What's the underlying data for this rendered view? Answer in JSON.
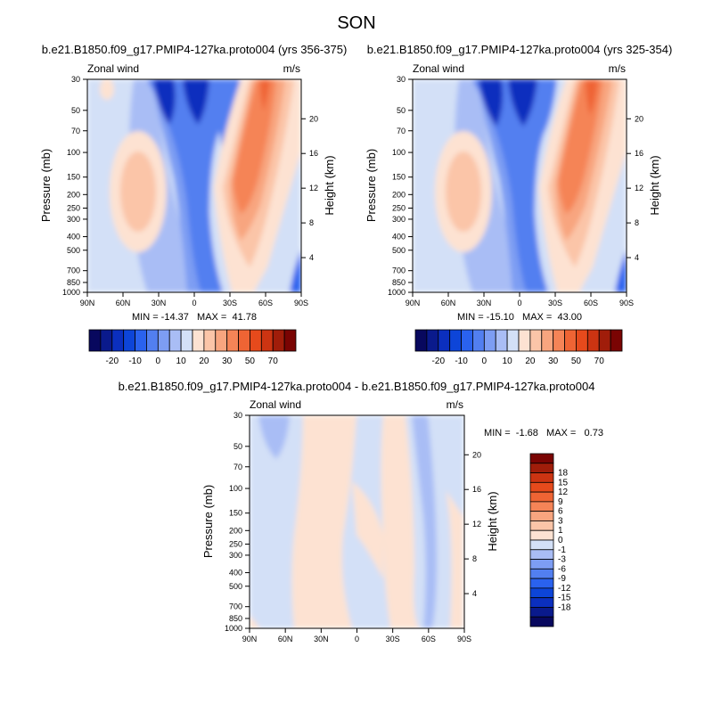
{
  "title": "SON",
  "colors": {
    "blue_scale": [
      "#08085e",
      "#0a1a8c",
      "#0b2fbe",
      "#0d45d8",
      "#2a62ee",
      "#527ff0",
      "#7d9df3",
      "#a9bdf5",
      "#d3e0f7"
    ],
    "red_scale": [
      "#fde2d2",
      "#fbc5a8",
      "#f8a57f",
      "#f58457",
      "#ef6434",
      "#e64a1c",
      "#cc3412",
      "#a01d0a",
      "#7a0403"
    ]
  },
  "panels": [
    {
      "subtitle": "b.e21.B1850.f09_g17.PMIP4-127ka.proto004 (yrs 356-375)",
      "var_label": "Zonal wind",
      "units": "m/s",
      "ylabel": "Pressure (mb)",
      "ylabel_right": "Height (km)",
      "stats": "MIN = -14.37   MAX =  41.78"
    },
    {
      "subtitle": "b.e21.B1850.f09_g17.PMIP4-127ka.proto004 (yrs 325-354)",
      "var_label": "Zonal wind",
      "units": "m/s",
      "ylabel": "Pressure (mb)",
      "ylabel_right": "Height (km)",
      "stats": "MIN = -15.10   MAX =  43.00"
    },
    {
      "subtitle": "b.e21.B1850.f09_g17.PMIP4-127ka.proto004 - b.e21.B1850.f09_g17.PMIP4-127ka.proto004",
      "var_label": "Zonal wind",
      "units": "m/s",
      "ylabel": "Pressure (mb)",
      "ylabel_right": "Height (km)",
      "stats": "MIN =  -1.68   MAX =   0.73"
    }
  ],
  "chart_data": [
    {
      "type": "contour",
      "title": "b.e21.B1850.f09_g17.PMIP4-127ka.proto004 (yrs 356-375)",
      "variable": "Zonal wind",
      "units": "m/s",
      "xlabel": "",
      "ylabel": "Pressure (mb)",
      "ylabel_right": "Height (km)",
      "x_ticks": [
        "90N",
        "60N",
        "30N",
        "0",
        "30S",
        "60S",
        "90S"
      ],
      "y_ticks": [
        30,
        50,
        70,
        100,
        150,
        200,
        250,
        300,
        400,
        500,
        700,
        850,
        1000
      ],
      "y_range": [
        1000,
        30
      ],
      "y_scale": "log",
      "height_ticks": [
        4,
        8,
        12,
        16,
        20
      ],
      "min": -14.37,
      "max": 41.78,
      "features": [
        {
          "kind": "jet",
          "lat": 40,
          "pressure": 200,
          "value": 20,
          "sign": "+",
          "hemisphere": "N"
        },
        {
          "kind": "jet",
          "lat": -30,
          "pressure": 200,
          "value": 40,
          "sign": "+",
          "hemisphere": "S"
        },
        {
          "kind": "easterly",
          "lat": 0,
          "pressure": 50,
          "value": -14,
          "sign": "-"
        }
      ]
    },
    {
      "type": "contour",
      "title": "b.e21.B1850.f09_g17.PMIP4-127ka.proto004 (yrs 325-354)",
      "variable": "Zonal wind",
      "units": "m/s",
      "xlabel": "",
      "ylabel": "Pressure (mb)",
      "ylabel_right": "Height (km)",
      "x_ticks": [
        "90N",
        "60N",
        "30N",
        "0",
        "30S",
        "60S",
        "90S"
      ],
      "y_ticks": [
        30,
        50,
        70,
        100,
        150,
        200,
        250,
        300,
        400,
        500,
        700,
        850,
        1000
      ],
      "y_range": [
        1000,
        30
      ],
      "y_scale": "log",
      "height_ticks": [
        4,
        8,
        12,
        16,
        20
      ],
      "min": -15.1,
      "max": 43.0,
      "features": [
        {
          "kind": "jet",
          "lat": 40,
          "pressure": 200,
          "value": 20,
          "sign": "+",
          "hemisphere": "N"
        },
        {
          "kind": "jet",
          "lat": -30,
          "pressure": 200,
          "value": 43,
          "sign": "+",
          "hemisphere": "S"
        },
        {
          "kind": "easterly",
          "lat": 0,
          "pressure": 50,
          "value": -15,
          "sign": "-"
        }
      ]
    },
    {
      "type": "contour",
      "title": "b.e21.B1850.f09_g17.PMIP4-127ka.proto004 - b.e21.B1850.f09_g17.PMIP4-127ka.proto004",
      "variable": "Zonal wind",
      "units": "m/s",
      "xlabel": "",
      "ylabel": "Pressure (mb)",
      "ylabel_right": "Height (km)",
      "x_ticks": [
        "90N",
        "60N",
        "30N",
        "0",
        "30S",
        "60S",
        "90S"
      ],
      "y_ticks": [
        30,
        50,
        70,
        100,
        150,
        200,
        250,
        300,
        400,
        500,
        700,
        850,
        1000
      ],
      "y_range": [
        1000,
        30
      ],
      "y_scale": "log",
      "height_ticks": [
        4,
        8,
        12,
        16,
        20
      ],
      "min": -1.68,
      "max": 0.73
    }
  ],
  "colorbars": [
    {
      "labels": [
        "-20",
        "-10",
        "0",
        "10",
        "20",
        "30",
        "50",
        "70"
      ]
    },
    {
      "labels": [
        "-20",
        "-10",
        "0",
        "10",
        "20",
        "30",
        "50",
        "70"
      ]
    },
    {
      "labels": [
        "18",
        "15",
        "12",
        "9",
        "6",
        "3",
        "1",
        "0",
        "-1",
        "-3",
        "-6",
        "-9",
        "-12",
        "-15",
        "-18"
      ]
    }
  ]
}
